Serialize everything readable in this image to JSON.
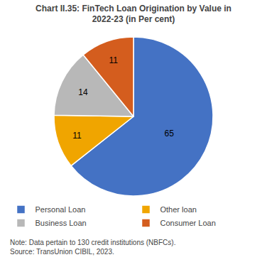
{
  "chart_data": {
    "type": "pie",
    "title": "Chart II.35: FinTech Loan Origination by Value in\n2022-23 (in Per cent)",
    "categories": [
      "Personal Loan",
      "Other loan",
      "Business Loan",
      "Consumer Loan"
    ],
    "values": [
      65,
      11,
      14,
      11
    ],
    "colors": [
      "#4472C4",
      "#F0A500",
      "#B8B8B8",
      "#D45D1E"
    ],
    "data_labels": true,
    "legend": "bottom",
    "annotations": [
      "Note: Data pertain to 130 credit institutions (NBFCs).\nSource: TransUnion CIBIL, 2023."
    ]
  }
}
